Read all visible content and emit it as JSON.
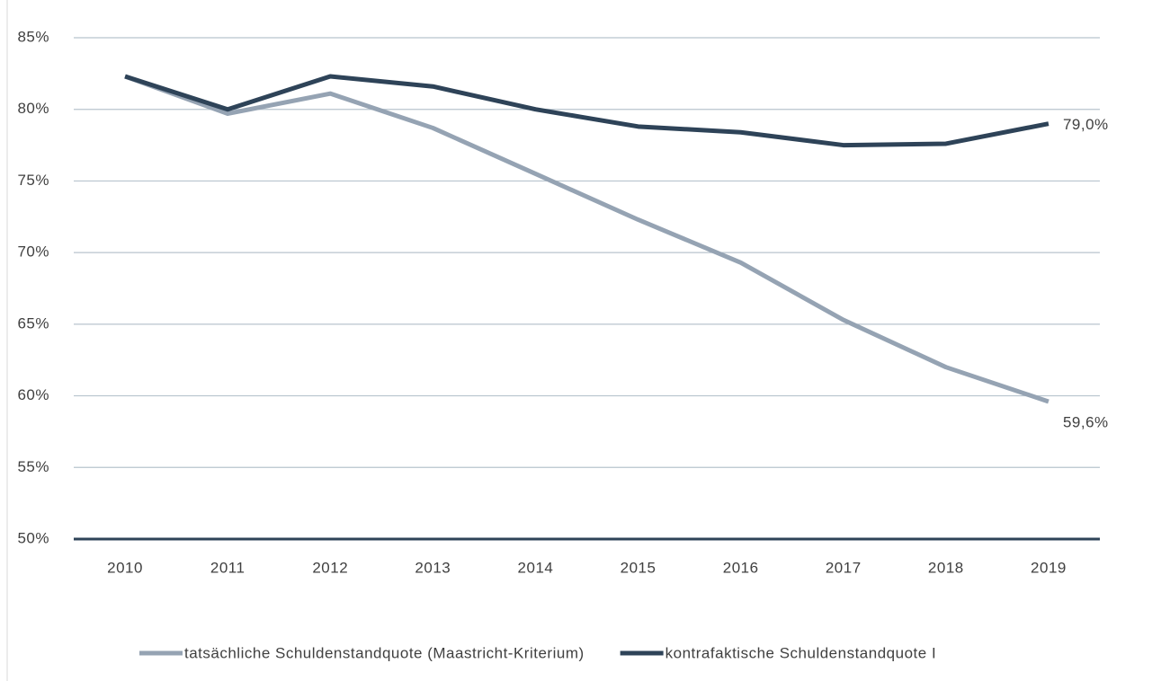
{
  "chart_data": {
    "type": "line",
    "categories": [
      "2010",
      "2011",
      "2012",
      "2013",
      "2014",
      "2015",
      "2016",
      "2017",
      "2018",
      "2019"
    ],
    "series": [
      {
        "name": "tatsächliche Schuldenstandquote (Maastricht-Kriterium)",
        "color": "#95a3b3",
        "values": [
          82.3,
          79.7,
          81.1,
          78.7,
          75.5,
          72.3,
          69.3,
          65.3,
          62.0,
          59.6
        ],
        "value_labels": [
          null,
          null,
          null,
          null,
          null,
          null,
          null,
          null,
          null,
          "59,6%"
        ]
      },
      {
        "name": "kontrafaktische Schuldenstandquote I",
        "color": "#2e4358",
        "values": [
          82.3,
          80.0,
          82.3,
          81.6,
          80.0,
          78.8,
          78.4,
          77.5,
          77.6,
          79.0
        ],
        "value_labels": [
          null,
          null,
          null,
          null,
          null,
          null,
          null,
          null,
          null,
          "79,0%"
        ]
      }
    ],
    "ylim": [
      50,
      85
    ],
    "yticks": [
      {
        "value": 50,
        "label": "50%"
      },
      {
        "value": 55,
        "label": "55%"
      },
      {
        "value": 60,
        "label": "60%"
      },
      {
        "value": 65,
        "label": "65%"
      },
      {
        "value": 70,
        "label": "70%"
      },
      {
        "value": 75,
        "label": "75%"
      },
      {
        "value": 80,
        "label": "80%"
      },
      {
        "value": 85,
        "label": "85%"
      }
    ],
    "grid": true,
    "legend": "bottom"
  }
}
